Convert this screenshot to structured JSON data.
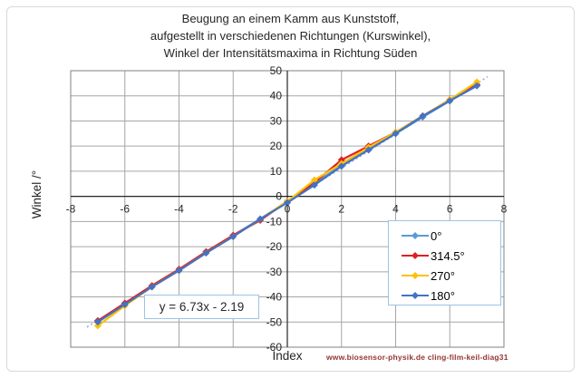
{
  "figure": {
    "title_lines": [
      "Beugung an einem Kamm aus Kunststoff,",
      "aufgestellt in verschiedenen Richtungen (Kurswinkel),",
      "Winkel der Intensitätsmaxima in Richtung Süden"
    ],
    "ylabel": "Winkel /°",
    "xlabel": "Index",
    "equation_label": "y = 6.73x - 2.19",
    "attribution": "www.biosensor-physik.de  cling-film-keil-diag31"
  },
  "chart_data": {
    "type": "scatter",
    "x": [
      -7,
      -6,
      -5,
      -4,
      -3,
      -2,
      -1,
      0,
      1,
      2,
      3,
      4,
      5,
      6,
      7
    ],
    "series": [
      {
        "name": "0°",
        "color": "#5B9BD5",
        "values": [
          -49.5,
          -42.5,
          -36,
          -29.5,
          -22.5,
          -15.5,
          -9,
          -2,
          5,
          12.5,
          18.5,
          25,
          31.5,
          38,
          44
        ]
      },
      {
        "name": "314.5°",
        "color": "#E02020",
        "values": [
          -49.5,
          -42.5,
          -35.5,
          -29,
          -22,
          -15.5,
          -9.5,
          -2,
          5.5,
          14.5,
          20,
          25.5,
          32,
          38.5,
          44.5
        ]
      },
      {
        "name": "270°",
        "color": "#FFC000",
        "values": [
          -51.5,
          -43.5,
          -36,
          -29.5,
          -22.5,
          -16,
          -9,
          -2,
          6.5,
          13,
          19.5,
          25.5,
          32,
          38.5,
          45.5
        ]
      },
      {
        "name": "180°",
        "color": "#4472C4",
        "values": [
          -50,
          -43,
          -36,
          -29.5,
          -22.5,
          -16,
          -9,
          -2.5,
          4.5,
          12,
          18.5,
          25,
          32,
          38,
          44
        ]
      }
    ],
    "trendline": {
      "slope": 6.73,
      "intercept": -2.19,
      "label": "y = 6.73x - 2.19",
      "style": "dotted",
      "color": "#8EAADB",
      "x_start": -7.4,
      "x_end": 7.4
    },
    "title": "Beugung an einem Kamm aus Kunststoff, aufgestellt in verschiedenen Richtungen (Kurswinkel), Winkel der Intensitätsmaxima in Richtung Süden",
    "xlabel": "Index",
    "ylabel": "Winkel /°",
    "xlim": [
      -8,
      8
    ],
    "ylim": [
      -60,
      50
    ],
    "x_ticks": [
      -8,
      -6,
      -4,
      -2,
      0,
      2,
      4,
      6,
      8
    ],
    "y_ticks": [
      50,
      40,
      30,
      20,
      10,
      0,
      -10,
      -20,
      -30,
      -40,
      -50,
      -60
    ],
    "grid": true,
    "legend_position": "inside-right"
  },
  "colors": {
    "gridline": "#A6A6A6",
    "plot_border": "#808080",
    "axis_line": "#262626",
    "tick_label": "#262626",
    "title_text": "#262626",
    "legend_border": "#9DC3E6",
    "attribution_text": "#943634"
  }
}
